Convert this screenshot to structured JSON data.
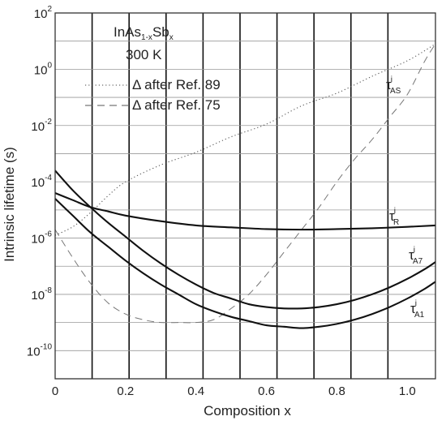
{
  "chart_data": {
    "type": "line",
    "title": "",
    "xlabel": "Composition x",
    "ylabel": "Intrinsic lifetime (s)",
    "xlim": [
      0,
      1.08
    ],
    "ylim_log10": [
      -11,
      2
    ],
    "y_scale": "log",
    "x_ticks": [
      "0",
      "0.2",
      "0.4",
      "0.6",
      "0.8",
      "1.0"
    ],
    "y_ticks": [
      {
        "base": "10",
        "exp": "2"
      },
      {
        "base": "10",
        "exp": "0"
      },
      {
        "base": "10",
        "exp": "-2"
      },
      {
        "base": "10",
        "exp": "-4"
      },
      {
        "base": "10",
        "exp": "-6"
      },
      {
        "base": "10",
        "exp": "-8"
      },
      {
        "base": "10",
        "exp": "-10"
      }
    ],
    "grid": true,
    "annotation": {
      "material": {
        "pre": "InAs",
        "sub1": "1-x",
        "mid": "Sb",
        "sub2": "x"
      },
      "temperature": "300 K"
    },
    "legend": {
      "placement": "top-left",
      "entries": [
        {
          "label": "Δ after Ref. 89",
          "style": "dotted"
        },
        {
          "label": "Δ after Ref. 75",
          "style": "dashed"
        }
      ]
    },
    "series": [
      {
        "name": "τ_AS",
        "label": {
          "base": "τ",
          "sup": "i",
          "sub": "AS"
        },
        "style": "dotted",
        "x": [
          0,
          0.05,
          0.1,
          0.15,
          0.2,
          0.3,
          0.4,
          0.5,
          0.6,
          0.7,
          0.8,
          0.9,
          1.0,
          1.08
        ],
        "log10_y": [
          -5.9,
          -5.6,
          -5.1,
          -4.5,
          -4.0,
          -3.4,
          -2.95,
          -2.4,
          -1.95,
          -1.3,
          -0.85,
          -0.25,
          0.3,
          0.9
        ]
      },
      {
        "name": "τ_AS",
        "label": {
          "base": "",
          "sup": "",
          "sub": ""
        },
        "style": "dashed",
        "x": [
          0,
          0.05,
          0.1,
          0.15,
          0.2,
          0.25,
          0.3,
          0.35,
          0.4,
          0.45,
          0.5,
          0.55,
          0.6,
          0.65,
          0.7,
          0.75,
          0.8,
          0.85,
          0.9,
          0.95,
          1.0,
          1.05,
          1.08
        ],
        "log10_y": [
          -5.7,
          -6.7,
          -7.6,
          -8.3,
          -8.7,
          -8.9,
          -9.0,
          -9.0,
          -9.0,
          -8.9,
          -8.5,
          -8.0,
          -7.3,
          -6.5,
          -5.7,
          -4.9,
          -4.0,
          -3.2,
          -2.5,
          -1.7,
          -0.9,
          0.3,
          0.9
        ]
      },
      {
        "name": "τ_R",
        "label": {
          "base": "τ",
          "sup": "i",
          "sub": "R"
        },
        "style": "solid",
        "x": [
          0,
          0.05,
          0.1,
          0.15,
          0.2,
          0.3,
          0.4,
          0.5,
          0.6,
          0.7,
          0.8,
          0.9,
          1.0,
          1.08
        ],
        "log10_y": [
          -4.4,
          -4.65,
          -4.9,
          -5.05,
          -5.2,
          -5.4,
          -5.55,
          -5.62,
          -5.68,
          -5.7,
          -5.68,
          -5.65,
          -5.6,
          -5.55
        ]
      },
      {
        "name": "τ_A7",
        "label": {
          "base": "τ",
          "sup": "i",
          "sub": "A7"
        },
        "style": "solid",
        "x": [
          0,
          0.05,
          0.1,
          0.15,
          0.2,
          0.25,
          0.3,
          0.35,
          0.4,
          0.45,
          0.5,
          0.55,
          0.6,
          0.65,
          0.7,
          0.75,
          0.8,
          0.85,
          0.9,
          0.95,
          1.0,
          1.05,
          1.08
        ],
        "log10_y": [
          -3.6,
          -4.3,
          -4.9,
          -5.45,
          -5.95,
          -6.45,
          -6.9,
          -7.3,
          -7.65,
          -7.95,
          -8.15,
          -8.35,
          -8.45,
          -8.5,
          -8.5,
          -8.45,
          -8.35,
          -8.2,
          -8.0,
          -7.75,
          -7.45,
          -7.1,
          -6.85
        ]
      },
      {
        "name": "τ_A1",
        "label": {
          "base": "τ",
          "sup": "i",
          "sub": "A1"
        },
        "style": "solid",
        "x": [
          0,
          0.05,
          0.1,
          0.15,
          0.2,
          0.25,
          0.3,
          0.35,
          0.4,
          0.45,
          0.5,
          0.55,
          0.6,
          0.65,
          0.7,
          0.75,
          0.8,
          0.85,
          0.9,
          0.95,
          1.0,
          1.05,
          1.08
        ],
        "log10_y": [
          -4.6,
          -5.2,
          -5.8,
          -6.3,
          -6.8,
          -7.25,
          -7.65,
          -8.0,
          -8.35,
          -8.6,
          -8.8,
          -8.95,
          -9.1,
          -9.15,
          -9.2,
          -9.15,
          -9.05,
          -8.9,
          -8.7,
          -8.45,
          -8.15,
          -7.8,
          -7.55
        ]
      }
    ]
  }
}
